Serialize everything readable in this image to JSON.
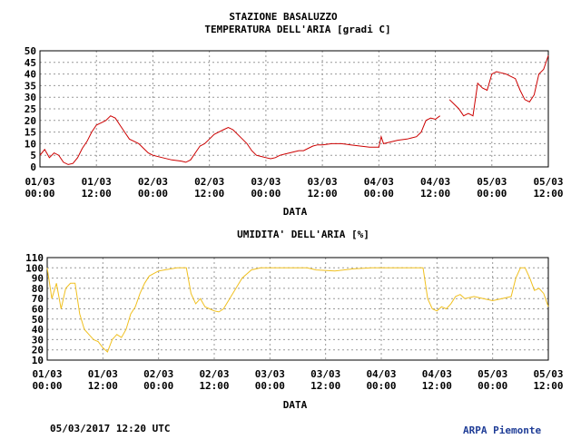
{
  "station_title": "STAZIONE BASALUZZO",
  "footer": {
    "timestamp": "05/03/2017 12:20 UTC",
    "organization": "ARPA Piemonte"
  },
  "colors": {
    "temperature_line": "#cc0000",
    "humidity_line": "#f0c020",
    "grid": "#999999",
    "organization_text": "#1e3c96"
  },
  "chart_data": [
    {
      "type": "line",
      "title": "TEMPERATURA DELL'ARIA [gradi C]",
      "xlabel": "DATA",
      "ylabel": "",
      "x_ticks": [
        {
          "date": "01/03",
          "time": "00:00"
        },
        {
          "date": "01/03",
          "time": "12:00"
        },
        {
          "date": "02/03",
          "time": "00:00"
        },
        {
          "date": "02/03",
          "time": "12:00"
        },
        {
          "date": "03/03",
          "time": "00:00"
        },
        {
          "date": "03/03",
          "time": "12:00"
        },
        {
          "date": "04/03",
          "time": "00:00"
        },
        {
          "date": "04/03",
          "time": "12:00"
        },
        {
          "date": "05/03",
          "time": "00:00"
        },
        {
          "date": "05/03",
          "time": "12:00"
        }
      ],
      "xlim": [
        "01/03 00:00",
        "05/03 12:00"
      ],
      "ylim": [
        0,
        50
      ],
      "y_ticks": [
        0,
        5,
        10,
        15,
        20,
        25,
        30,
        35,
        40,
        45,
        50
      ],
      "grid": true,
      "series": [
        {
          "color": "#cc0000",
          "segments": [
            [
              [
                "01/03 00:00",
                5
              ],
              [
                "01/03 01:00",
                7.5
              ],
              [
                "01/03 02:00",
                4
              ],
              [
                "01/03 03:00",
                6
              ],
              [
                "01/03 04:00",
                5
              ],
              [
                "01/03 05:00",
                2
              ],
              [
                "01/03 06:00",
                1
              ],
              [
                "01/03 07:00",
                1.5
              ],
              [
                "01/03 08:00",
                4
              ],
              [
                "01/03 09:00",
                8
              ],
              [
                "01/03 10:00",
                11
              ],
              [
                "01/03 11:00",
                15
              ],
              [
                "01/03 12:00",
                18
              ],
              [
                "01/03 13:00",
                19
              ],
              [
                "01/03 14:00",
                20
              ],
              [
                "01/03 15:00",
                22
              ],
              [
                "01/03 16:00",
                21
              ],
              [
                "01/03 17:00",
                18
              ],
              [
                "01/03 18:00",
                15
              ],
              [
                "01/03 19:00",
                12
              ],
              [
                "01/03 20:00",
                11
              ],
              [
                "01/03 21:00",
                10
              ],
              [
                "01/03 22:00",
                8
              ],
              [
                "01/03 23:00",
                6
              ],
              [
                "02/03 00:00",
                5
              ],
              [
                "02/03 02:00",
                4
              ],
              [
                "02/03 04:00",
                3
              ],
              [
                "02/03 06:00",
                2.5
              ],
              [
                "02/03 07:00",
                2
              ],
              [
                "02/03 08:00",
                3
              ],
              [
                "02/03 09:00",
                6
              ],
              [
                "02/03 10:00",
                9
              ],
              [
                "02/03 11:00",
                10
              ],
              [
                "02/03 12:00",
                12
              ],
              [
                "02/03 13:00",
                14
              ],
              [
                "02/03 14:00",
                15
              ],
              [
                "02/03 15:00",
                16
              ],
              [
                "02/03 16:00",
                17
              ],
              [
                "02/03 17:00",
                16
              ],
              [
                "02/03 18:00",
                14
              ],
              [
                "02/03 19:00",
                12
              ],
              [
                "02/03 20:00",
                10
              ],
              [
                "02/03 21:00",
                7
              ],
              [
                "02/03 22:00",
                5
              ],
              [
                "02/03 23:00",
                4.5
              ],
              [
                "03/03 00:00",
                4
              ],
              [
                "03/03 01:00",
                3.5
              ],
              [
                "03/03 02:00",
                4
              ],
              [
                "03/03 03:00",
                5
              ],
              [
                "03/03 04:00",
                5.5
              ],
              [
                "03/03 05:00",
                6
              ],
              [
                "03/03 06:00",
                6.5
              ],
              [
                "03/03 07:00",
                7
              ],
              [
                "03/03 08:00",
                7
              ],
              [
                "03/03 09:00",
                8
              ],
              [
                "03/03 10:00",
                9
              ],
              [
                "03/03 11:00",
                9.5
              ],
              [
                "03/03 12:00",
                9.5
              ],
              [
                "03/03 14:00",
                10
              ],
              [
                "03/03 16:00",
                10
              ],
              [
                "03/03 18:00",
                9.5
              ],
              [
                "03/03 20:00",
                9
              ],
              [
                "03/03 22:00",
                8.5
              ],
              [
                "04/03 00:00",
                8.5
              ],
              [
                "04/03 00:30",
                13
              ],
              [
                "04/03 01:00",
                10
              ],
              [
                "04/03 02:00",
                10.5
              ],
              [
                "04/03 04:00",
                11.5
              ],
              [
                "04/03 06:00",
                12
              ],
              [
                "04/03 07:00",
                12.5
              ],
              [
                "04/03 08:00",
                13
              ],
              [
                "04/03 09:00",
                15
              ],
              [
                "04/03 10:00",
                20
              ],
              [
                "04/03 11:00",
                21
              ],
              [
                "04/03 12:00",
                20.5
              ],
              [
                "04/03 13:00",
                22
              ]
            ],
            [
              [
                "04/03 15:00",
                29
              ],
              [
                "04/03 16:00",
                27
              ],
              [
                "04/03 17:00",
                25
              ],
              [
                "04/03 18:00",
                22
              ],
              [
                "04/03 19:00",
                23
              ],
              [
                "04/03 20:00",
                22
              ],
              [
                "04/03 21:00",
                36
              ],
              [
                "04/03 22:00",
                34
              ],
              [
                "04/03 23:00",
                33
              ],
              [
                "05/03 00:00",
                40
              ],
              [
                "05/03 01:00",
                41
              ],
              [
                "05/03 02:00",
                40.5
              ],
              [
                "05/03 03:00",
                40
              ],
              [
                "05/03 04:00",
                39
              ],
              [
                "05/03 05:00",
                38
              ],
              [
                "05/03 06:00",
                33
              ],
              [
                "05/03 07:00",
                29
              ],
              [
                "05/03 08:00",
                28
              ],
              [
                "05/03 09:00",
                31
              ],
              [
                "05/03 10:00",
                40
              ],
              [
                "05/03 11:00",
                42
              ],
              [
                "05/03 12:00",
                48
              ]
            ]
          ]
        }
      ]
    },
    {
      "type": "line",
      "title": "UMIDITA' DELL'ARIA [%]",
      "xlabel": "DATA",
      "ylabel": "",
      "x_ticks": [
        {
          "date": "01/03",
          "time": "00:00"
        },
        {
          "date": "01/03",
          "time": "12:00"
        },
        {
          "date": "02/03",
          "time": "00:00"
        },
        {
          "date": "02/03",
          "time": "12:00"
        },
        {
          "date": "03/03",
          "time": "00:00"
        },
        {
          "date": "03/03",
          "time": "12:00"
        },
        {
          "date": "04/03",
          "time": "00:00"
        },
        {
          "date": "04/03",
          "time": "12:00"
        },
        {
          "date": "05/03",
          "time": "00:00"
        },
        {
          "date": "05/03",
          "time": "12:00"
        }
      ],
      "xlim": [
        "01/03 00:00",
        "05/03 12:00"
      ],
      "ylim": [
        10,
        110
      ],
      "y_ticks": [
        10,
        20,
        30,
        40,
        50,
        60,
        70,
        80,
        90,
        100,
        110
      ],
      "grid": true,
      "series": [
        {
          "color": "#f0c020",
          "segments": [
            [
              [
                "01/03 00:00",
                100
              ],
              [
                "01/03 01:00",
                70
              ],
              [
                "01/03 02:00",
                85
              ],
              [
                "01/03 03:00",
                60
              ],
              [
                "01/03 04:00",
                80
              ],
              [
                "01/03 05:00",
                85
              ],
              [
                "01/03 06:00",
                85
              ],
              [
                "01/03 07:00",
                55
              ],
              [
                "01/03 08:00",
                40
              ],
              [
                "01/03 09:00",
                35
              ],
              [
                "01/03 10:00",
                30
              ],
              [
                "01/03 11:00",
                28
              ],
              [
                "01/03 12:00",
                22
              ],
              [
                "01/03 13:00",
                18
              ],
              [
                "01/03 14:00",
                30
              ],
              [
                "01/03 15:00",
                35
              ],
              [
                "01/03 16:00",
                32
              ],
              [
                "01/03 17:00",
                40
              ],
              [
                "01/03 18:00",
                55
              ],
              [
                "01/03 19:00",
                62
              ],
              [
                "01/03 20:00",
                75
              ],
              [
                "01/03 21:00",
                85
              ],
              [
                "01/03 22:00",
                92
              ],
              [
                "02/03 00:00",
                97
              ],
              [
                "02/03 04:00",
                100
              ],
              [
                "02/03 06:00",
                100
              ],
              [
                "02/03 07:00",
                75
              ],
              [
                "02/03 08:00",
                65
              ],
              [
                "02/03 09:00",
                70
              ],
              [
                "02/03 10:00",
                62
              ],
              [
                "02/03 11:00",
                60
              ],
              [
                "02/03 12:00",
                58
              ],
              [
                "02/03 13:00",
                57
              ],
              [
                "02/03 14:00",
                60
              ],
              [
                "02/03 16:00",
                75
              ],
              [
                "02/03 18:00",
                90
              ],
              [
                "02/03 20:00",
                98
              ],
              [
                "02/03 22:00",
                100
              ],
              [
                "03/03 04:00",
                100
              ],
              [
                "03/03 08:00",
                100
              ],
              [
                "03/03 10:00",
                98
              ],
              [
                "03/03 14:00",
                97
              ],
              [
                "03/03 18:00",
                99
              ],
              [
                "03/03 22:00",
                100
              ],
              [
                "04/03 08:00",
                100
              ],
              [
                "04/03 09:00",
                100
              ],
              [
                "04/03 10:00",
                70
              ],
              [
                "04/03 11:00",
                60
              ],
              [
                "04/03 12:00",
                58
              ],
              [
                "04/03 13:00",
                62
              ],
              [
                "04/03 14:00",
                60
              ],
              [
                "04/03 15:00",
                65
              ],
              [
                "04/03 16:00",
                72
              ],
              [
                "04/03 17:00",
                74
              ],
              [
                "04/03 18:00",
                70
              ],
              [
                "04/03 20:00",
                72
              ],
              [
                "04/03 22:00",
                70
              ],
              [
                "05/03 00:00",
                68
              ],
              [
                "05/03 02:00",
                70
              ],
              [
                "05/03 04:00",
                72
              ],
              [
                "05/03 05:00",
                90
              ],
              [
                "05/03 06:00",
                100
              ],
              [
                "05/03 07:00",
                100
              ],
              [
                "05/03 08:00",
                90
              ],
              [
                "05/03 09:00",
                78
              ],
              [
                "05/03 10:00",
                80
              ],
              [
                "05/03 11:00",
                75
              ],
              [
                "05/03 12:00",
                62
              ]
            ]
          ]
        }
      ]
    }
  ]
}
